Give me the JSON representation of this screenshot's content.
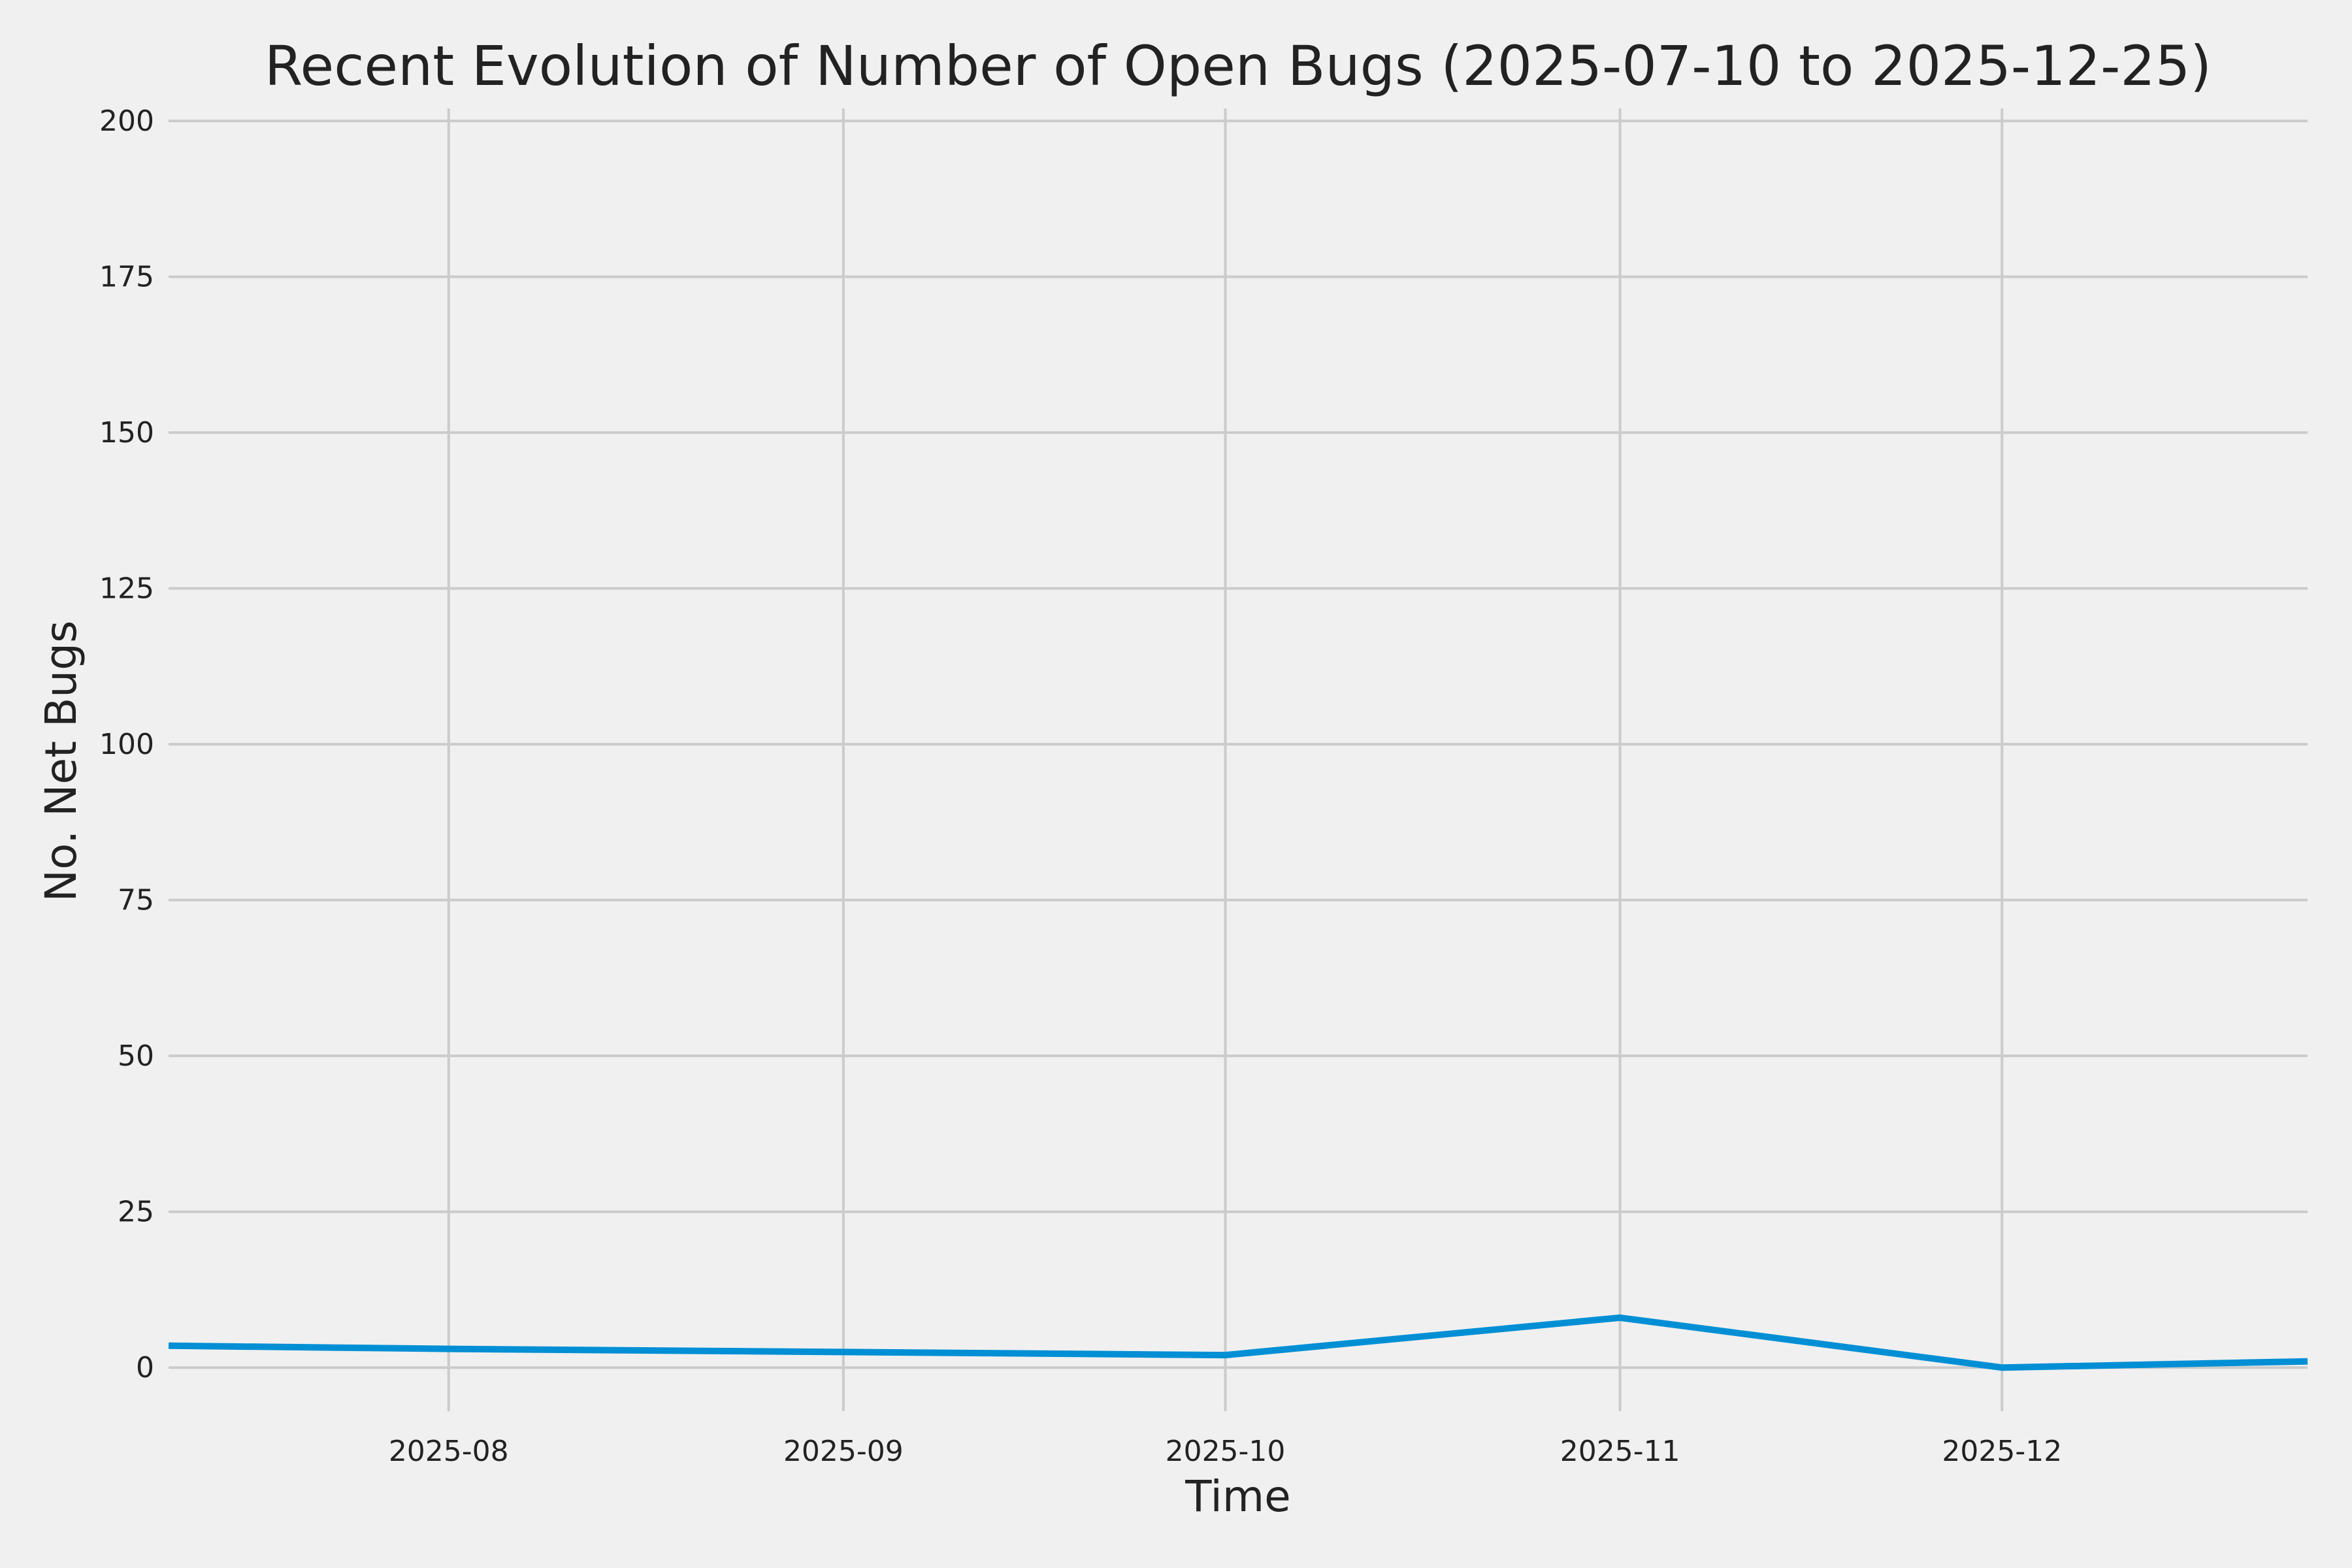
{
  "chart_data": {
    "type": "line",
    "title": "Recent Evolution of Number of Open Bugs (2025-07-10 to 2025-12-25)",
    "xlabel": "Time",
    "ylabel": "No. Net Bugs",
    "x_type": "date",
    "xlim": [
      "2025-07-10",
      "2025-12-25"
    ],
    "ylim": [
      -7,
      202
    ],
    "x_ticks": [
      "2025-08-01",
      "2025-09-01",
      "2025-10-01",
      "2025-11-01",
      "2025-12-01"
    ],
    "x_tick_labels": [
      "2025-08",
      "2025-09",
      "2025-10",
      "2025-11",
      "2025-12"
    ],
    "y_ticks": [
      0,
      25,
      50,
      75,
      100,
      125,
      150,
      175,
      200
    ],
    "y_tick_labels": [
      "0",
      "25",
      "50",
      "75",
      "100",
      "125",
      "150",
      "175",
      "200"
    ],
    "grid": true,
    "series": [
      {
        "color": "#008fd5",
        "x": [
          "2025-07-10",
          "2025-08-01",
          "2025-09-01",
          "2025-10-01",
          "2025-11-01",
          "2025-12-01",
          "2025-12-25"
        ],
        "y": [
          3.5,
          3,
          2.5,
          2,
          8,
          0,
          1
        ]
      }
    ]
  }
}
